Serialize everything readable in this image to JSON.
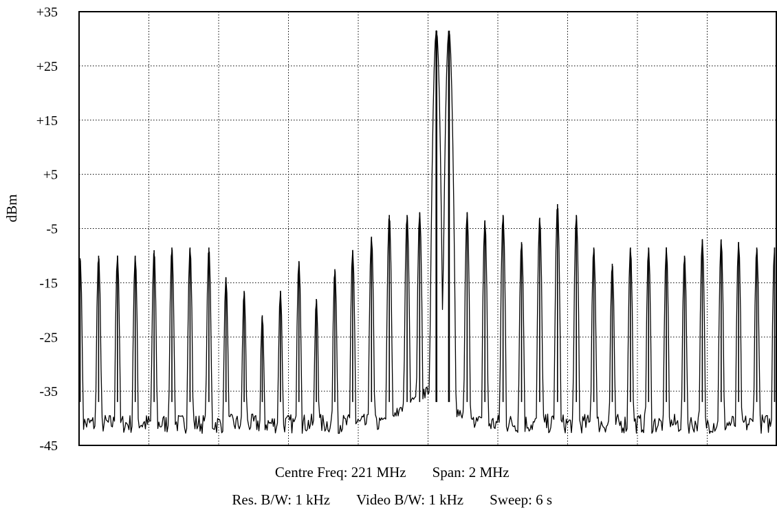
{
  "chart_data": {
    "type": "line",
    "title": "",
    "xlabel": "",
    "ylabel": "dBm",
    "ylim": [
      -45,
      35
    ],
    "yticks": [
      35,
      25,
      15,
      5,
      -5,
      -15,
      -25,
      -35,
      -45
    ],
    "ytick_labels": [
      "+35",
      "+25",
      "+15",
      "+5",
      "-5",
      "-15",
      "-25",
      "-35",
      "-45"
    ],
    "xlim": [
      220,
      222
    ],
    "x_units": "MHz",
    "x_gridlines": 10,
    "grid": true,
    "grid_style": "dotted",
    "noise_floor_dbm": -41,
    "series": [
      {
        "type": "spectral_lines",
        "x": [
          220.003,
          220.056,
          220.11,
          220.161,
          220.215,
          220.266,
          220.318,
          220.372,
          220.421,
          220.473,
          220.525,
          220.577,
          220.63,
          220.68,
          220.733,
          220.784,
          220.838,
          220.889,
          220.94,
          220.976,
          221.024,
          221.06,
          221.112,
          221.163,
          221.215,
          221.268,
          221.32,
          221.371,
          221.425,
          221.475,
          221.528,
          221.58,
          221.632,
          221.683,
          221.735,
          221.786,
          221.84,
          221.89,
          221.942,
          221.993
        ],
        "values": [
          -10.5,
          -10,
          -10,
          -10,
          -9,
          -8.5,
          -8.5,
          -8.5,
          -14,
          -16.5,
          -21,
          -16.5,
          -11,
          -18,
          -12.5,
          -9,
          -6.5,
          -2.5,
          -2.5,
          -2,
          31.5,
          31.5,
          -2,
          -3.5,
          -2.5,
          -7.5,
          -3,
          -0.5,
          -2.5,
          -8.5,
          -11.5,
          -8.5,
          -8.5,
          -8.5,
          -10,
          -7,
          -7,
          -7.5,
          -8.5,
          -8.5
        ]
      }
    ]
  },
  "info": {
    "line1": [
      "Centre Freq: 221 MHz",
      "Span: 2 MHz"
    ],
    "line2": [
      "Res. B/W: 1 kHz",
      "Video B/W: 1 kHz",
      "Sweep: 6 s"
    ]
  }
}
